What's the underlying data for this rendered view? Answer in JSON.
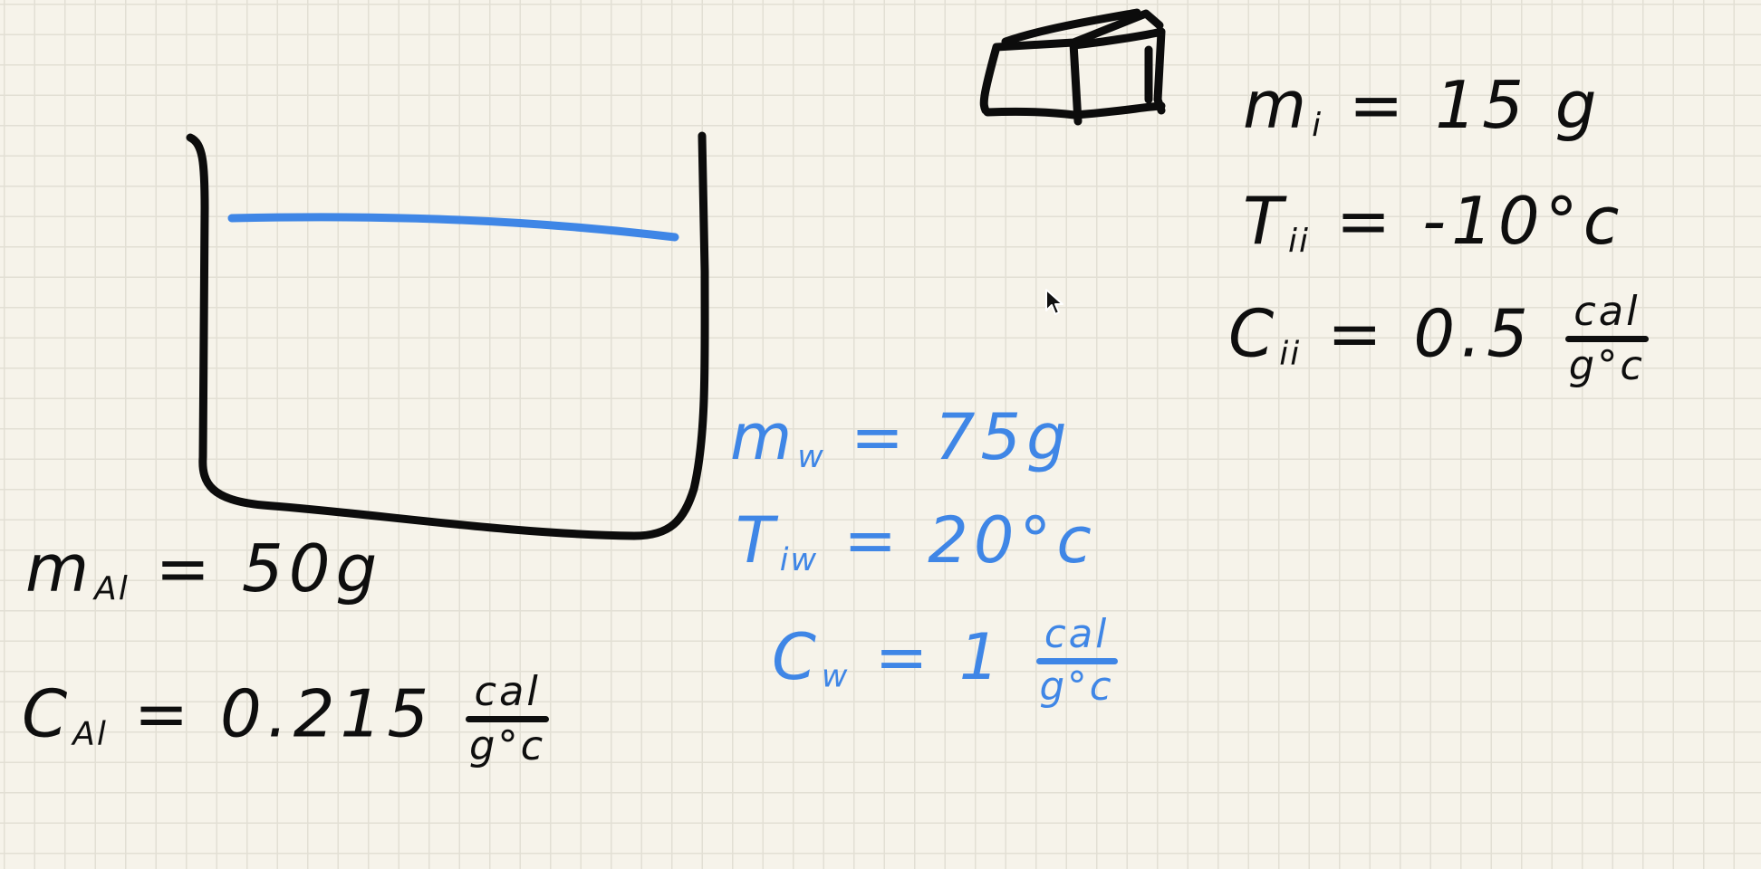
{
  "aluminum": {
    "mass": {
      "symbol": "m",
      "subscript": "Al",
      "value": "= 50g"
    },
    "specific_heat": {
      "symbol": "C",
      "subscript": "Al",
      "value": "= 0.215",
      "unit_num": "cal",
      "unit_den": "g°c"
    }
  },
  "water": {
    "mass": {
      "symbol": "m",
      "subscript": "w",
      "value": "= 75g"
    },
    "initial_temp": {
      "symbol": "T",
      "subscript": "iw",
      "value": "= 20°c"
    },
    "specific_heat": {
      "symbol": "C",
      "subscript": "w",
      "value": "= 1",
      "unit_num": "cal",
      "unit_den": "g°c"
    }
  },
  "ice": {
    "mass": {
      "symbol": "m",
      "subscript": "i",
      "value": "= 15 g"
    },
    "initial_temp": {
      "symbol": "T",
      "subscript": "ii",
      "value": "= -10°c"
    },
    "specific_heat": {
      "symbol": "C",
      "subscript": "ii",
      "value": "= 0.5",
      "unit_num": "cal",
      "unit_den": "g°c"
    }
  },
  "colors": {
    "paper": "#f6f3ea",
    "grid": "#e2dfd4",
    "ink_black": "#0c0c0c",
    "ink_blue": "#3f86e6"
  }
}
